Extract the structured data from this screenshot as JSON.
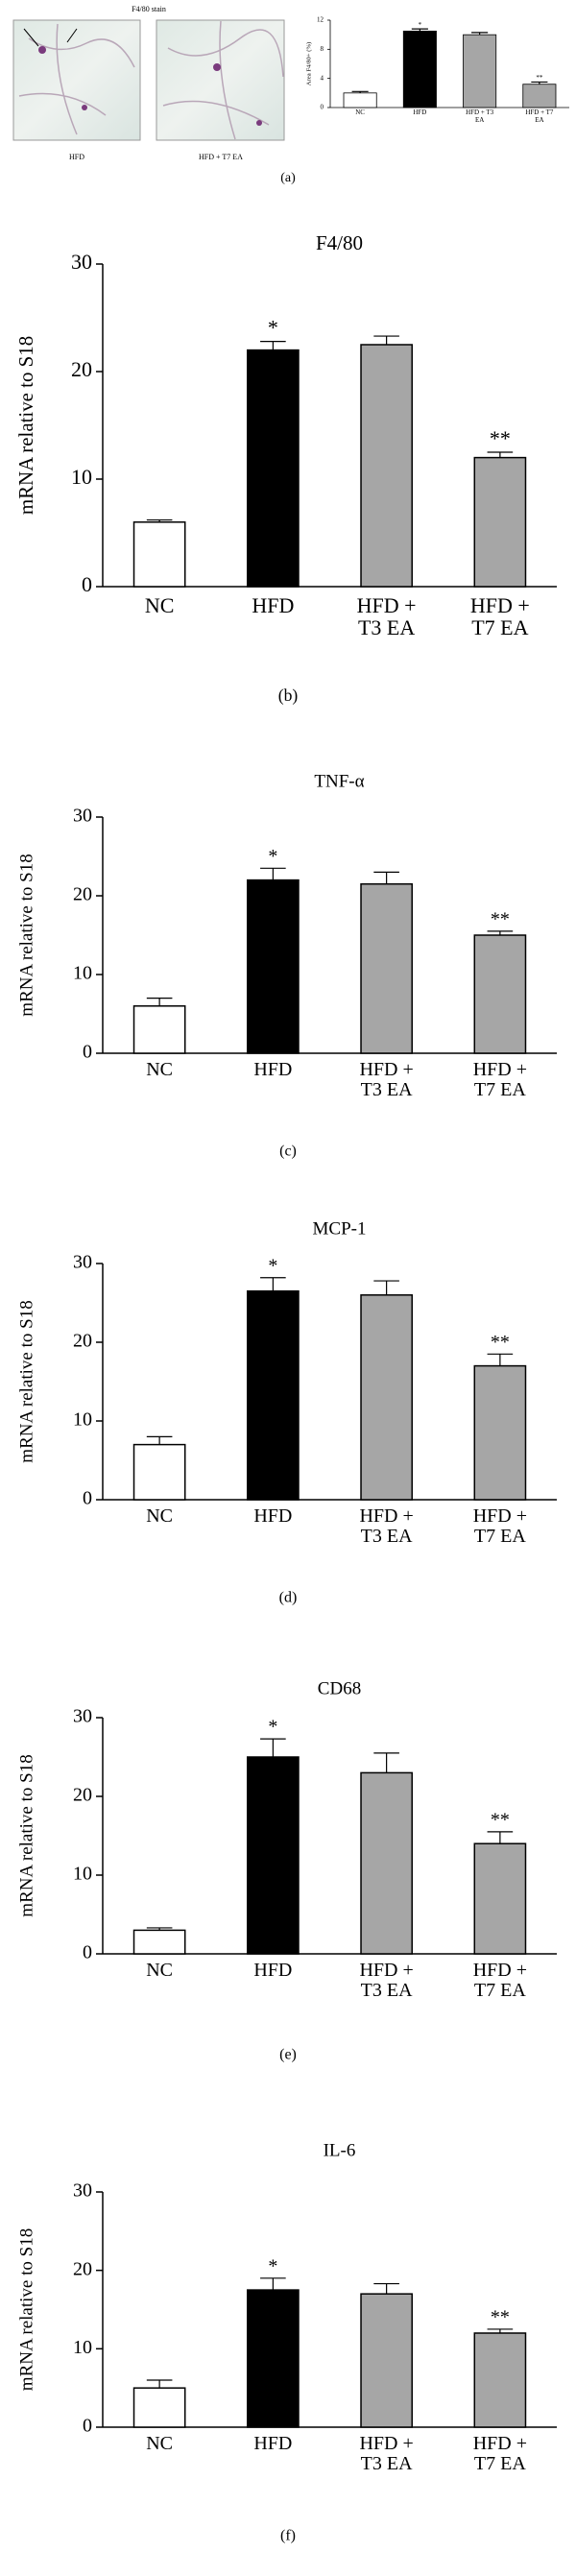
{
  "panel_a_images": {
    "title": "F4/80 stain",
    "labels": [
      "HFD",
      "HFD + T7 EA"
    ]
  },
  "chart_data": [
    {
      "type": "bar",
      "panel_label": "(a)",
      "y_label": "Area F4/80+ (%)",
      "categories": [
        "NC",
        "HFD",
        "HFD + T3 EA",
        "HFD + T7 EA"
      ],
      "values": [
        2,
        10.5,
        10,
        3.2
      ],
      "errors": [
        0.2,
        0.3,
        0.3,
        0.3
      ],
      "annotations": [
        null,
        "*",
        null,
        "**"
      ],
      "colors": [
        "#ffffff",
        "#000000",
        "#a6a6a6",
        "#a6a6a6"
      ],
      "ylim": [
        0,
        12
      ],
      "yticks": [
        0,
        4,
        8,
        12
      ]
    },
    {
      "type": "bar",
      "panel_label": "(b)",
      "title": "F4/80",
      "y_label": "mRNA relative to S18",
      "categories": [
        "NC",
        "HFD",
        "HFD + T3 EA",
        "HFD + T7 EA"
      ],
      "values": [
        6,
        22,
        22.5,
        12
      ],
      "errors": [
        0.2,
        0.8,
        0.8,
        0.5
      ],
      "annotations": [
        null,
        "*",
        null,
        "**"
      ],
      "colors": [
        "#ffffff",
        "#000000",
        "#a6a6a6",
        "#a6a6a6"
      ],
      "ylim": [
        0,
        30
      ],
      "yticks": [
        0,
        10,
        20,
        30
      ]
    },
    {
      "type": "bar",
      "panel_label": "(c)",
      "title": "TNF-α",
      "y_label": "mRNA relative to S18",
      "categories": [
        "NC",
        "HFD",
        "HFD + T3 EA",
        "HFD + T7 EA"
      ],
      "values": [
        6,
        22,
        21.5,
        15
      ],
      "errors": [
        1,
        1.5,
        1.5,
        0.5
      ],
      "annotations": [
        null,
        "*",
        null,
        "**"
      ],
      "colors": [
        "#ffffff",
        "#000000",
        "#a6a6a6",
        "#a6a6a6"
      ],
      "ylim": [
        0,
        30
      ],
      "yticks": [
        0,
        10,
        20,
        30
      ]
    },
    {
      "type": "bar",
      "panel_label": "(d)",
      "title": "MCP-1",
      "y_label": "mRNA relative to S18",
      "categories": [
        "NC",
        "HFD",
        "HFD + T3 EA",
        "HFD + T7 EA"
      ],
      "values": [
        7,
        26.5,
        26,
        17
      ],
      "errors": [
        1,
        1.7,
        1.8,
        1.5
      ],
      "annotations": [
        null,
        "*",
        null,
        "**"
      ],
      "colors": [
        "#ffffff",
        "#000000",
        "#a6a6a6",
        "#a6a6a6"
      ],
      "ylim": [
        0,
        30
      ],
      "yticks": [
        0,
        10,
        20,
        30
      ]
    },
    {
      "type": "bar",
      "panel_label": "(e)",
      "title": "CD68",
      "y_label": "mRNA relative to S18",
      "categories": [
        "NC",
        "HFD",
        "HFD + T3 EA",
        "HFD + T7 EA"
      ],
      "values": [
        3,
        25,
        23,
        14
      ],
      "errors": [
        0.3,
        2.3,
        2.5,
        1.5
      ],
      "annotations": [
        null,
        "*",
        null,
        "**"
      ],
      "colors": [
        "#ffffff",
        "#000000",
        "#a6a6a6",
        "#a6a6a6"
      ],
      "ylim": [
        0,
        30
      ],
      "yticks": [
        0,
        10,
        20,
        30
      ]
    },
    {
      "type": "bar",
      "panel_label": "(f)",
      "title": "IL-6",
      "y_label": "mRNA relative to S18",
      "categories": [
        "NC",
        "HFD",
        "HFD + T3 EA",
        "HFD + T7 EA"
      ],
      "values": [
        5,
        17.5,
        17,
        12
      ],
      "errors": [
        1,
        1.5,
        1.3,
        0.5
      ],
      "annotations": [
        null,
        "*",
        null,
        "**"
      ],
      "colors": [
        "#ffffff",
        "#000000",
        "#a6a6a6",
        "#a6a6a6"
      ],
      "ylim": [
        0,
        30
      ],
      "yticks": [
        0,
        10,
        20,
        30
      ]
    }
  ]
}
